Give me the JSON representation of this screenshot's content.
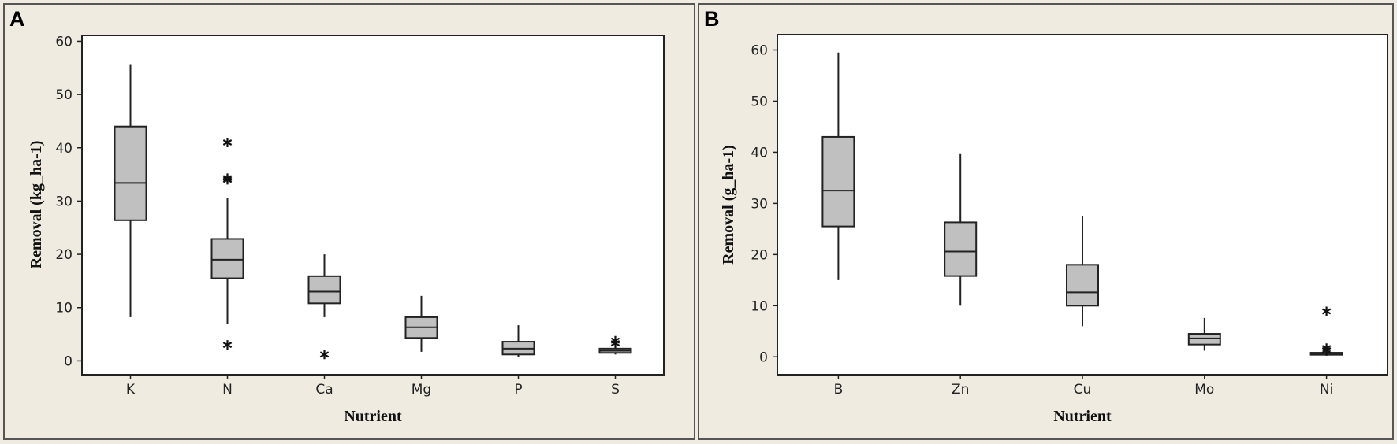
{
  "chart_data": [
    {
      "type": "box",
      "panel_label": "A",
      "xlabel": "Nutrient",
      "ylabel": "Removal (kg_ha-1)",
      "ylim": [
        -2.6,
        61.1
      ],
      "yticks": [
        0,
        10,
        20,
        30,
        40,
        50,
        60
      ],
      "grid": false,
      "box_color": "#c0c0c0",
      "categories": [
        "K",
        "N",
        "Ca",
        "Mg",
        "P",
        "S"
      ],
      "boxes": [
        {
          "category": "K",
          "whisker_low": 8.2,
          "q1": 26.4,
          "median": 33.4,
          "q3": 44.0,
          "whisker_high": 55.7,
          "outliers": []
        },
        {
          "category": "N",
          "whisker_low": 6.9,
          "q1": 15.5,
          "median": 19.0,
          "q3": 22.9,
          "whisker_high": 30.6,
          "outliers": [
            41.0,
            34.3,
            34.0,
            3.0
          ]
        },
        {
          "category": "Ca",
          "whisker_low": 8.2,
          "q1": 10.8,
          "median": 13.0,
          "q3": 15.9,
          "whisker_high": 20.0,
          "outliers": [
            1.2
          ]
        },
        {
          "category": "Mg",
          "whisker_low": 1.7,
          "q1": 4.3,
          "median": 6.3,
          "q3": 8.2,
          "whisker_high": 12.2,
          "outliers": []
        },
        {
          "category": "P",
          "whisker_low": 0.7,
          "q1": 1.2,
          "median": 2.3,
          "q3": 3.6,
          "whisker_high": 6.7,
          "outliers": []
        },
        {
          "category": "S",
          "whisker_low": 1.2,
          "q1": 1.5,
          "median": 1.9,
          "q3": 2.3,
          "whisker_high": 2.5,
          "outliers": [
            3.8,
            3.3
          ]
        }
      ]
    },
    {
      "type": "box",
      "panel_label": "B",
      "xlabel": "Nutrient",
      "ylabel": "Removal (g_ha-1)",
      "ylim": [
        -3.5,
        63.0
      ],
      "yticks": [
        0,
        10,
        20,
        30,
        40,
        50,
        60
      ],
      "grid": false,
      "box_color": "#c0c0c0",
      "categories": [
        "B",
        "Zn",
        "Cu",
        "Mo",
        "Ni"
      ],
      "boxes": [
        {
          "category": "B",
          "whisker_low": 15.0,
          "q1": 25.5,
          "median": 32.5,
          "q3": 43.0,
          "whisker_high": 59.5,
          "outliers": []
        },
        {
          "category": "Zn",
          "whisker_low": 10.0,
          "q1": 15.8,
          "median": 20.6,
          "q3": 26.3,
          "whisker_high": 39.8,
          "outliers": []
        },
        {
          "category": "Cu",
          "whisker_low": 6.0,
          "q1": 10.0,
          "median": 12.6,
          "q3": 18.0,
          "whisker_high": 27.5,
          "outliers": []
        },
        {
          "category": "Mo",
          "whisker_low": 1.2,
          "q1": 2.4,
          "median": 3.6,
          "q3": 4.5,
          "whisker_high": 7.6,
          "outliers": []
        },
        {
          "category": "Ni",
          "whisker_low": 0.2,
          "q1": 0.4,
          "median": 0.5,
          "q3": 0.8,
          "whisker_high": 1.0,
          "outliers": [
            8.9,
            1.7,
            1.3
          ]
        }
      ]
    }
  ]
}
